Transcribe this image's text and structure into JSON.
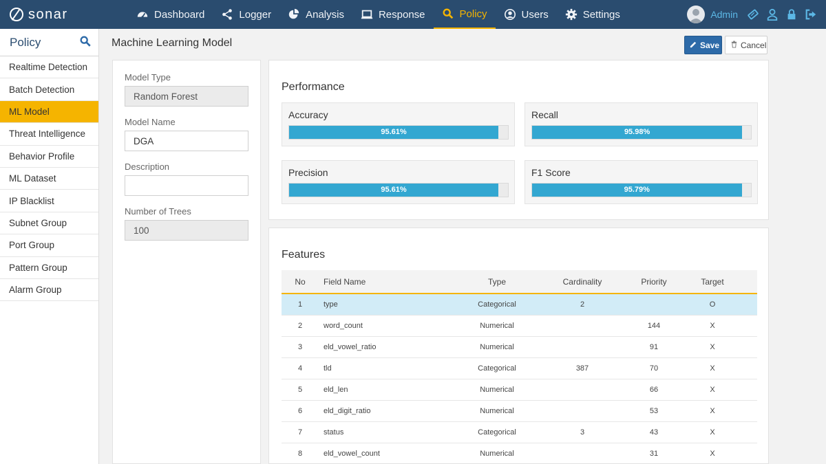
{
  "brand": {
    "name": "sonar",
    "icon": "sonar-logo-icon"
  },
  "nav": {
    "items": [
      {
        "label": "Dashboard",
        "icon": "dashboard-icon",
        "active": false
      },
      {
        "label": "Logger",
        "icon": "share-icon",
        "active": false
      },
      {
        "label": "Analysis",
        "icon": "pie-chart-icon",
        "active": false
      },
      {
        "label": "Response",
        "icon": "monitor-icon",
        "active": false
      },
      {
        "label": "Policy",
        "icon": "search-icon",
        "active": true
      },
      {
        "label": "Users",
        "icon": "user-circle-icon",
        "active": false
      },
      {
        "label": "Settings",
        "icon": "gear-icon",
        "active": false
      }
    ]
  },
  "user": {
    "name": "Admin",
    "tools": [
      "license-icon",
      "user-outline-icon",
      "lock-icon",
      "logout-icon"
    ]
  },
  "sidebar": {
    "title": "Policy",
    "items": [
      {
        "label": "Realtime Detection"
      },
      {
        "label": "Batch Detection"
      },
      {
        "label": "ML Model"
      },
      {
        "label": "Threat Intelligence"
      },
      {
        "label": "Behavior Profile"
      },
      {
        "label": "ML Dataset"
      },
      {
        "label": "IP Blacklist"
      },
      {
        "label": "Subnet Group"
      },
      {
        "label": "Port Group"
      },
      {
        "label": "Pattern Group"
      },
      {
        "label": "Alarm Group"
      }
    ],
    "active_index": 2
  },
  "page": {
    "title": "Machine Learning Model",
    "save_label": "Save",
    "cancel_label": "Cancel"
  },
  "form": {
    "model_type_label": "Model Type",
    "model_type_value": "Random Forest",
    "model_name_label": "Model Name",
    "model_name_value": "DGA",
    "description_label": "Description",
    "description_value": "",
    "trees_label": "Number of Trees",
    "trees_value": "100"
  },
  "performance": {
    "title": "Performance",
    "metrics": [
      {
        "name": "Accuracy",
        "value": 0.9561,
        "text": "95.61%"
      },
      {
        "name": "Recall",
        "value": 0.9598,
        "text": "95.98%"
      },
      {
        "name": "Precision",
        "value": 0.9561,
        "text": "95.61%"
      },
      {
        "name": "F1 Score",
        "value": 0.9579,
        "text": "95.79%"
      }
    ]
  },
  "features": {
    "title": "Features",
    "columns": {
      "no": "No",
      "field": "Field Name",
      "type": "Type",
      "cardinality": "Cardinality",
      "priority": "Priority",
      "target": "Target"
    },
    "rows": [
      {
        "no": "1",
        "field": "type",
        "type": "Categorical",
        "cardinality": "2",
        "priority": "",
        "target": "O"
      },
      {
        "no": "2",
        "field": "word_count",
        "type": "Numerical",
        "cardinality": "",
        "priority": "144",
        "target": "X"
      },
      {
        "no": "3",
        "field": "eld_vowel_ratio",
        "type": "Numerical",
        "cardinality": "",
        "priority": "91",
        "target": "X"
      },
      {
        "no": "4",
        "field": "tld",
        "type": "Categorical",
        "cardinality": "387",
        "priority": "70",
        "target": "X"
      },
      {
        "no": "5",
        "field": "eld_len",
        "type": "Numerical",
        "cardinality": "",
        "priority": "66",
        "target": "X"
      },
      {
        "no": "6",
        "field": "eld_digit_ratio",
        "type": "Numerical",
        "cardinality": "",
        "priority": "53",
        "target": "X"
      },
      {
        "no": "7",
        "field": "status",
        "type": "Categorical",
        "cardinality": "3",
        "priority": "43",
        "target": "X"
      },
      {
        "no": "8",
        "field": "eld_vowel_count",
        "type": "Numerical",
        "cardinality": "",
        "priority": "31",
        "target": "X"
      }
    ],
    "selected_index": 0
  },
  "colors": {
    "nav_bg": "#2a4c6f",
    "accent": "#f5b400",
    "bar": "#33a7d1",
    "save_button": "#2d6aa8",
    "admin_text": "#5cb8e6"
  }
}
